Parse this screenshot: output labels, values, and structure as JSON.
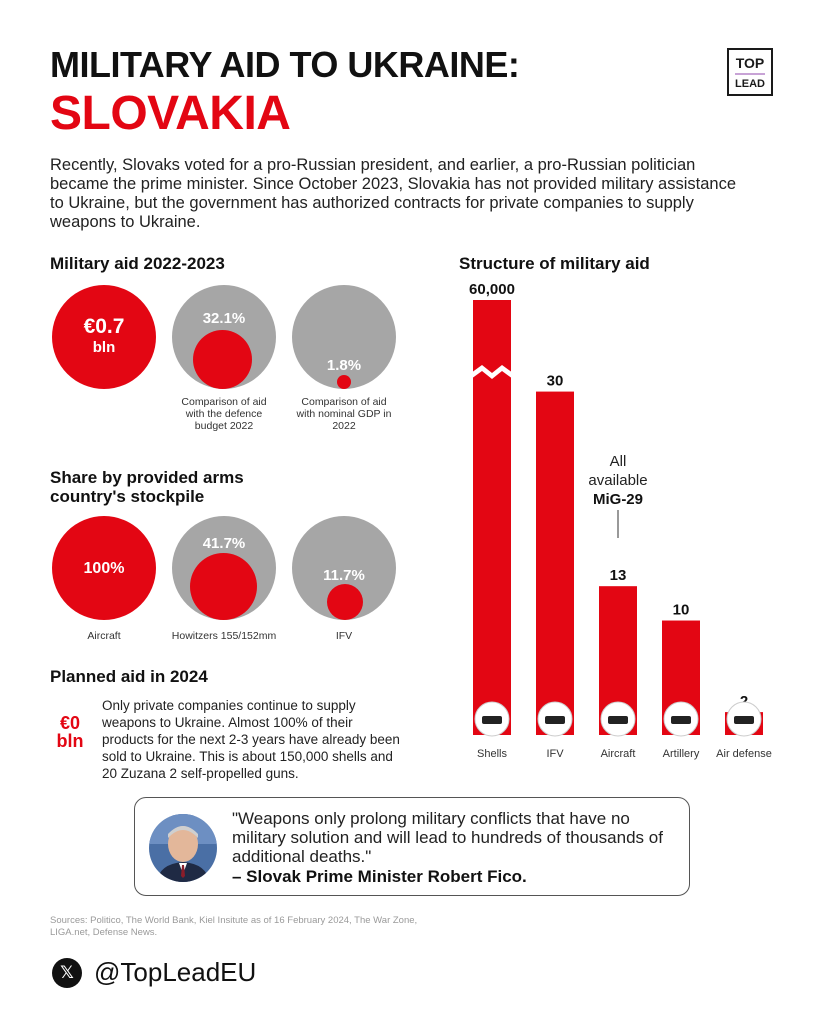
{
  "title_line1": "MILITARY AID TO UKRAINE:",
  "title_line2": "SLOVAKIA",
  "logo_top": "TOP",
  "logo_bottom": "LEAD",
  "intro": "Recently, Slovaks voted for a pro-Russian president, and earlier, a pro-Russian politician became the prime minister. Since October 2023, Slovakia has not provided military assistance to Ukraine, but the government has authorized contracts for private companies to supply weapons to Ukraine.",
  "aid_section": {
    "heading": "Military aid 2022-2023",
    "total_value": "€0.7",
    "total_unit": "bln",
    "defence_budget_pct": "32.1%",
    "defence_budget_caption": "Comparison of aid with the defence budget 2022",
    "gdp_pct": "1.8%",
    "gdp_caption": "Comparison of aid with nominal GDP in 2022"
  },
  "share_section": {
    "heading_line1": "Share by provided arms",
    "heading_line2": "country's stockpile",
    "aircraft_pct": "100%",
    "aircraft_label": "Aircraft",
    "howitzers_pct": "41.7%",
    "howitzers_label": "Howitzers 155/152mm",
    "ifv_pct": "11.7%",
    "ifv_label": "IFV"
  },
  "planned_section": {
    "heading": "Planned aid in 2024",
    "value": "€0",
    "unit": "bln",
    "text": "Only private companies continue to supply weapons to Ukraine. Almost 100% of their products for the next 2-3 years have already been sold to Ukraine. This is about 150,000 shells and 20 Zuzana 2 self-propelled guns."
  },
  "chart_data": {
    "type": "bar",
    "title": "Structure of military aid",
    "categories": [
      "Shells",
      "IFV",
      "Aircraft",
      "Artillery",
      "Air defense"
    ],
    "values": [
      60000,
      30,
      13,
      10,
      2
    ],
    "value_labels": [
      "60,000",
      "30",
      "13",
      "10",
      "2"
    ],
    "axis_break": true,
    "icons": [
      "shells-icon",
      "ifv-icon",
      "aircraft-icon",
      "artillery-icon",
      "air-defense-icon"
    ],
    "annotation": {
      "line1": "All",
      "line2": "available",
      "line3": "MiG-29"
    },
    "bar_color": "#e30613",
    "ylim": [
      0,
      38
    ]
  },
  "quote": {
    "text": "\"Weapons only prolong military conflicts that have no military solution and will lead to hundreds of thousands of additional deaths.\"",
    "author": "– Slovak Prime Minister Robert Fico."
  },
  "sources": "Sources: Politico, The World Bank, Kiel Insitute as of 16 February 2024, The War Zone, LIGA.net, Defense News.",
  "social": {
    "handle": "@TopLeadEU"
  },
  "colors": {
    "accent": "#e30613",
    "gray": "#a6a6a6"
  }
}
